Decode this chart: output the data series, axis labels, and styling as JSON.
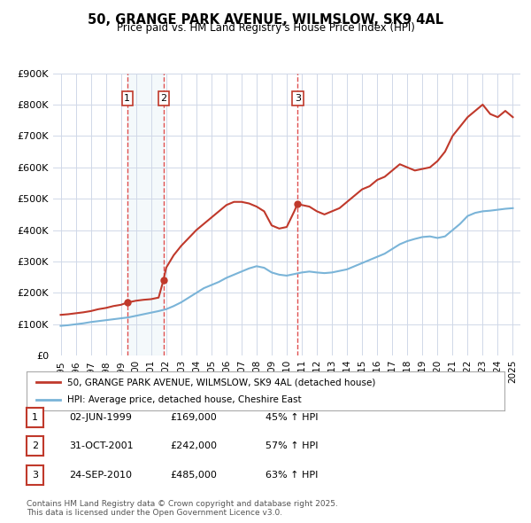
{
  "title": "50, GRANGE PARK AVENUE, WILMSLOW, SK9 4AL",
  "subtitle": "Price paid vs. HM Land Registry's House Price Index (HPI)",
  "legend_label_red": "50, GRANGE PARK AVENUE, WILMSLOW, SK9 4AL (detached house)",
  "legend_label_blue": "HPI: Average price, detached house, Cheshire East",
  "footer": "Contains HM Land Registry data © Crown copyright and database right 2025.\nThis data is licensed under the Open Government Licence v3.0.",
  "transactions": [
    {
      "num": 1,
      "date": "02-JUN-1999",
      "price": "£169,000",
      "pct": "45% ↑ HPI",
      "year": 1999.42
    },
    {
      "num": 2,
      "date": "31-OCT-2001",
      "price": "£242,000",
      "pct": "57% ↑ HPI",
      "year": 2001.83
    },
    {
      "num": 3,
      "date": "24-SEP-2010",
      "price": "£485,000",
      "pct": "63% ↑ HPI",
      "year": 2010.73
    }
  ],
  "transaction_values": [
    169000,
    242000,
    485000
  ],
  "vline_colors": [
    "#e05050",
    "#e05050",
    "#e05050"
  ],
  "vline_shade_pairs": [
    [
      1999.42,
      2001.83
    ]
  ],
  "red_line_color": "#c0392b",
  "blue_line_color": "#7ab4d8",
  "background_color": "#ffffff",
  "plot_bg_color": "#ffffff",
  "grid_color": "#d0d8e8",
  "ylim": [
    0,
    900000
  ],
  "xlim": [
    1994.5,
    2025.5
  ],
  "yticks": [
    0,
    100000,
    200000,
    300000,
    400000,
    500000,
    600000,
    700000,
    800000,
    900000
  ],
  "ytick_labels": [
    "£0",
    "£100K",
    "£200K",
    "£300K",
    "£400K",
    "£500K",
    "£600K",
    "£700K",
    "£800K",
    "£900K"
  ],
  "xticks": [
    1995,
    1996,
    1997,
    1998,
    1999,
    2000,
    2001,
    2002,
    2003,
    2004,
    2005,
    2006,
    2007,
    2008,
    2009,
    2010,
    2011,
    2012,
    2013,
    2014,
    2015,
    2016,
    2017,
    2018,
    2019,
    2020,
    2021,
    2022,
    2023,
    2024,
    2025
  ],
  "red_x": [
    1995.0,
    1995.5,
    1996.0,
    1996.5,
    1997.0,
    1997.5,
    1998.0,
    1998.5,
    1999.0,
    1999.42,
    1999.5,
    2000.0,
    2000.5,
    2001.0,
    2001.5,
    2001.83,
    2002.0,
    2002.5,
    2003.0,
    2003.5,
    2004.0,
    2004.5,
    2005.0,
    2005.5,
    2006.0,
    2006.5,
    2007.0,
    2007.5,
    2008.0,
    2008.5,
    2009.0,
    2009.5,
    2010.0,
    2010.5,
    2010.73,
    2011.0,
    2011.5,
    2012.0,
    2012.5,
    2013.0,
    2013.5,
    2014.0,
    2014.5,
    2015.0,
    2015.5,
    2016.0,
    2016.5,
    2017.0,
    2017.5,
    2018.0,
    2018.5,
    2019.0,
    2019.5,
    2020.0,
    2020.5,
    2021.0,
    2021.5,
    2022.0,
    2022.5,
    2023.0,
    2023.5,
    2024.0,
    2024.5,
    2025.0
  ],
  "red_y": [
    130000,
    132000,
    135000,
    138000,
    142000,
    148000,
    152000,
    158000,
    162000,
    169000,
    170000,
    175000,
    178000,
    180000,
    185000,
    242000,
    280000,
    320000,
    350000,
    375000,
    400000,
    420000,
    440000,
    460000,
    480000,
    490000,
    490000,
    485000,
    475000,
    460000,
    415000,
    405000,
    410000,
    460000,
    485000,
    480000,
    475000,
    460000,
    450000,
    460000,
    470000,
    490000,
    510000,
    530000,
    540000,
    560000,
    570000,
    590000,
    610000,
    600000,
    590000,
    595000,
    600000,
    620000,
    650000,
    700000,
    730000,
    760000,
    780000,
    800000,
    770000,
    760000,
    780000,
    760000
  ],
  "blue_x": [
    1995.0,
    1995.5,
    1996.0,
    1996.5,
    1997.0,
    1997.5,
    1998.0,
    1998.5,
    1999.0,
    1999.5,
    2000.0,
    2000.5,
    2001.0,
    2001.5,
    2002.0,
    2002.5,
    2003.0,
    2003.5,
    2004.0,
    2004.5,
    2005.0,
    2005.5,
    2006.0,
    2006.5,
    2007.0,
    2007.5,
    2008.0,
    2008.5,
    2009.0,
    2009.5,
    2010.0,
    2010.5,
    2011.0,
    2011.5,
    2012.0,
    2012.5,
    2013.0,
    2013.5,
    2014.0,
    2014.5,
    2015.0,
    2015.5,
    2016.0,
    2016.5,
    2017.0,
    2017.5,
    2018.0,
    2018.5,
    2019.0,
    2019.5,
    2020.0,
    2020.5,
    2021.0,
    2021.5,
    2022.0,
    2022.5,
    2023.0,
    2023.5,
    2024.0,
    2024.5,
    2025.0
  ],
  "blue_y": [
    95000,
    97000,
    100000,
    103000,
    107000,
    110000,
    113000,
    116000,
    119000,
    122000,
    127000,
    132000,
    137000,
    142000,
    148000,
    158000,
    170000,
    185000,
    200000,
    215000,
    225000,
    235000,
    248000,
    258000,
    268000,
    278000,
    285000,
    280000,
    265000,
    258000,
    255000,
    260000,
    265000,
    268000,
    265000,
    263000,
    265000,
    270000,
    275000,
    285000,
    295000,
    305000,
    315000,
    325000,
    340000,
    355000,
    365000,
    372000,
    378000,
    380000,
    375000,
    380000,
    400000,
    420000,
    445000,
    455000,
    460000,
    462000,
    465000,
    468000,
    470000
  ]
}
